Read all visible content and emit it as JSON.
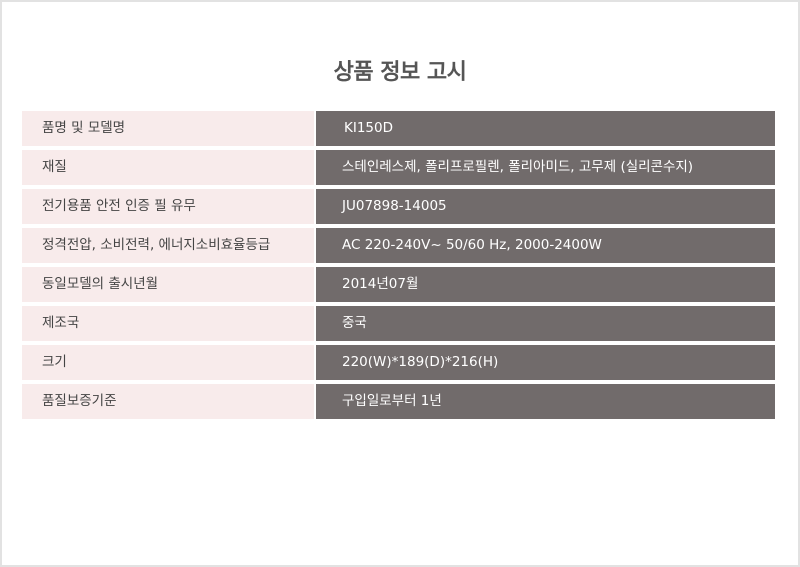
{
  "title": "상품 정보 고시",
  "rows": [
    {
      "label": "품명 및 모델명",
      "value": "KI150D"
    },
    {
      "label": "재질",
      "value": "스테인레스제, 폴리프로필렌, 폴리아미드, 고무제 (실리콘수지)"
    },
    {
      "label": "전기용품 안전 인증 필 유무",
      "value": "JU07898-14005"
    },
    {
      "label": "정격전압, 소비전력, 에너지소비효율등급",
      "value": "AC 220-240V~ 50/60 Hz, 2000-2400W"
    },
    {
      "label": "동일모델의 출시년월",
      "value": "2014년07월"
    },
    {
      "label": "제조국",
      "value": "중국"
    },
    {
      "label": "크기",
      "value": "220(W)*189(D)*216(H)"
    },
    {
      "label": "품질보증기준",
      "value": "구입일로부터 1년"
    }
  ]
}
